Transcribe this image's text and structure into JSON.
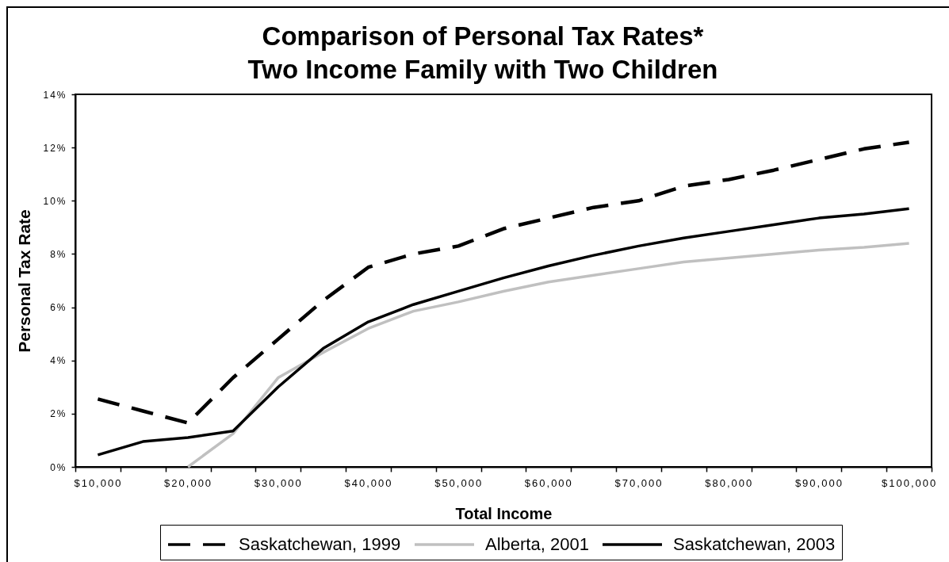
{
  "chart_data": {
    "type": "line",
    "title": "Comparison of Personal Tax Rates*",
    "subtitle": "Two Income Family with Two Children",
    "xlabel": "Total Income",
    "ylabel": "Personal Tax Rate",
    "categories": [
      "$10,000",
      null,
      "$20,000",
      null,
      "$30,000",
      null,
      "$40,000",
      null,
      "$50,000",
      null,
      "$60,000",
      null,
      "$70,000",
      null,
      "$80,000",
      null,
      "$90,000",
      null,
      "$100,000"
    ],
    "series": [
      {
        "name": "Saskatchewan, 1999",
        "color": "#000000",
        "line_style": "dashed",
        "values": [
          2.55,
          2.1,
          1.65,
          3.35,
          4.8,
          6.25,
          7.5,
          8.0,
          8.3,
          8.95,
          9.35,
          9.75,
          10.0,
          10.55,
          10.8,
          11.15,
          11.55,
          11.95,
          12.2
        ]
      },
      {
        "name": "Alberta, 2001",
        "color": "#c0c0c0",
        "line_style": "solid",
        "values": [
          null,
          null,
          0,
          1.25,
          3.35,
          4.3,
          5.2,
          5.85,
          6.2,
          6.6,
          6.95,
          7.2,
          7.45,
          7.7,
          7.85,
          8.0,
          8.15,
          8.25,
          8.4
        ]
      },
      {
        "name": "Saskatchewan, 2003",
        "color": "#000000",
        "line_style": "solid",
        "values": [
          0.45,
          0.95,
          1.1,
          1.35,
          3.0,
          4.45,
          5.45,
          6.1,
          6.6,
          7.1,
          7.55,
          7.95,
          8.3,
          8.6,
          8.85,
          9.1,
          9.35,
          9.5,
          9.7
        ]
      }
    ],
    "ylim": [
      0,
      14
    ],
    "yticks": [
      {
        "value": 0,
        "label": "0%"
      },
      {
        "value": 2,
        "label": "2%"
      },
      {
        "value": 4,
        "label": "4%"
      },
      {
        "value": 6,
        "label": "6%"
      },
      {
        "value": 8,
        "label": "8%"
      },
      {
        "value": 10,
        "label": "10%"
      },
      {
        "value": 12,
        "label": "12%"
      },
      {
        "value": 14,
        "label": "14%"
      }
    ],
    "legend": "bottom"
  }
}
